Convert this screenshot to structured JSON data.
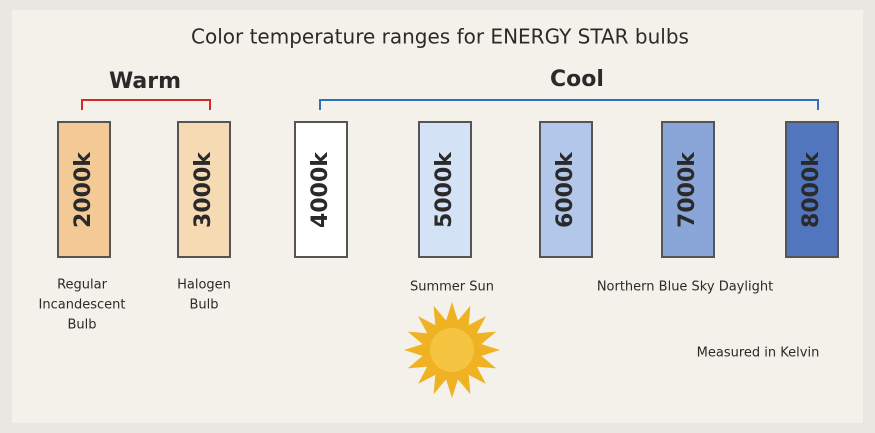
{
  "title": "Color temperature ranges for ENERGY STAR bulbs",
  "groups": [
    {
      "label": "Warm",
      "color": "#d42a2a"
    },
    {
      "label": "Cool",
      "color": "#2f6fc0"
    }
  ],
  "swatches": [
    {
      "label": "2000k",
      "color": "#f3c995"
    },
    {
      "label": "3000k",
      "color": "#f6dab4"
    },
    {
      "label": "4000k",
      "color": "#ffffff"
    },
    {
      "label": "5000k",
      "color": "#d3e3f5"
    },
    {
      "label": "6000k",
      "color": "#b2c7e9"
    },
    {
      "label": "7000k",
      "color": "#8aa5d7"
    },
    {
      "label": "8000k",
      "color": "#5176bd"
    }
  ],
  "captions": [
    {
      "lines": [
        "Regular",
        "Incandescent",
        "Bulb"
      ]
    },
    {
      "lines": [
        "Halogen",
        "Bulb"
      ]
    },
    {
      "lines": [
        "Summer Sun"
      ]
    },
    {
      "lines": [
        "Northern Blue Sky Daylight"
      ]
    }
  ],
  "note": "Measured in Kelvin"
}
